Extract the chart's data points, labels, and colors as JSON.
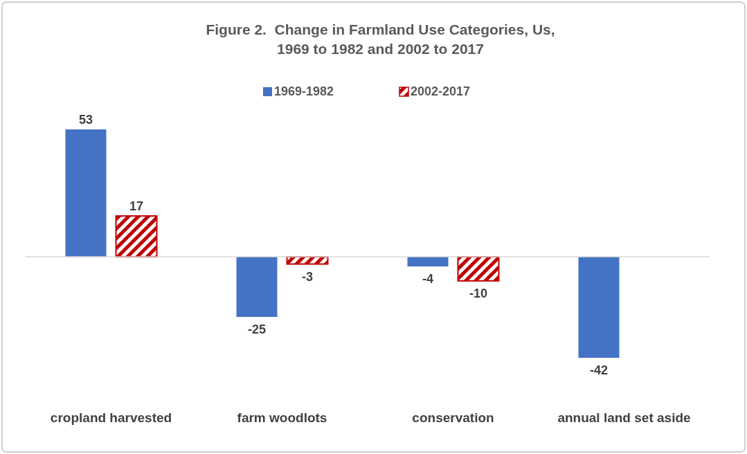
{
  "chart_data": {
    "type": "bar",
    "title": "Figure 2.  Change in Farmland Use Categories, Us,\n1969 to 1982 and 2002 to 2017",
    "categories": [
      "cropland harvested",
      "farm woodlots",
      "conservation",
      "annual land set aside"
    ],
    "series": [
      {
        "name": "1969-1982",
        "color": "#4472c4",
        "values": [
          53,
          -25,
          -4,
          -42
        ]
      },
      {
        "name": "2002-2017",
        "color": "#c00000",
        "values": [
          17,
          -3,
          -10,
          null
        ]
      }
    ],
    "data_labels": true,
    "legend": "top"
  }
}
